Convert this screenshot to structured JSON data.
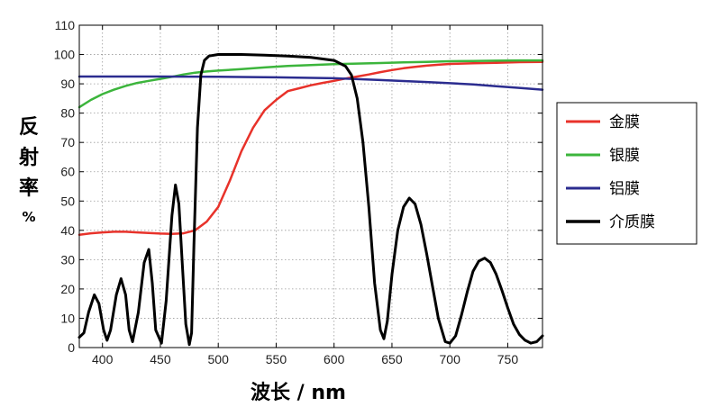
{
  "chart_data": {
    "type": "line",
    "title": "",
    "xlabel": "波长 / nm",
    "ylabel_lines": [
      "反",
      "射",
      "率",
      "%"
    ],
    "xlim": [
      380,
      780
    ],
    "ylim": [
      0,
      110
    ],
    "xticks": [
      400,
      450,
      500,
      550,
      600,
      650,
      700,
      750
    ],
    "yticks": [
      0,
      10,
      20,
      30,
      40,
      50,
      60,
      70,
      80,
      90,
      100,
      110
    ],
    "grid": true,
    "legend_position": "right",
    "series": [
      {
        "name": "金膜",
        "color": "#e8322a",
        "x": [
          380,
          390,
          400,
          410,
          420,
          430,
          440,
          450,
          460,
          470,
          480,
          490,
          500,
          510,
          520,
          530,
          540,
          550,
          560,
          570,
          580,
          590,
          600,
          610,
          620,
          630,
          640,
          650,
          660,
          670,
          680,
          690,
          700,
          720,
          740,
          760,
          780
        ],
        "y": [
          38.5,
          39.0,
          39.3,
          39.5,
          39.5,
          39.3,
          39.1,
          38.9,
          38.8,
          39.0,
          40.0,
          43.0,
          48.0,
          57.0,
          67.0,
          75.0,
          81.0,
          84.5,
          87.5,
          88.5,
          89.5,
          90.3,
          91.0,
          91.8,
          92.5,
          93.2,
          94.0,
          94.7,
          95.3,
          95.8,
          96.2,
          96.5,
          96.8,
          97.0,
          97.2,
          97.4,
          97.5
        ]
      },
      {
        "name": "银膜",
        "color": "#3cb53c",
        "x": [
          380,
          390,
          400,
          410,
          420,
          430,
          440,
          450,
          460,
          470,
          480,
          490,
          500,
          520,
          540,
          560,
          580,
          600,
          620,
          640,
          660,
          680,
          700,
          720,
          740,
          760,
          780
        ],
        "y": [
          82.0,
          84.5,
          86.5,
          88.0,
          89.3,
          90.3,
          91.0,
          91.7,
          92.4,
          93.2,
          93.8,
          94.2,
          94.5,
          95.0,
          95.6,
          96.1,
          96.4,
          96.7,
          96.9,
          97.1,
          97.3,
          97.5,
          97.7,
          97.8,
          97.9,
          98.0,
          98.0
        ]
      },
      {
        "name": "铝膜",
        "color": "#2b2c8f",
        "x": [
          380,
          400,
          450,
          500,
          550,
          600,
          640,
          680,
          700,
          720,
          740,
          760,
          780
        ],
        "y": [
          92.5,
          92.5,
          92.5,
          92.4,
          92.2,
          91.9,
          91.3,
          90.6,
          90.2,
          89.8,
          89.2,
          88.6,
          88.0
        ]
      },
      {
        "name": "介质膜",
        "color": "#000000",
        "x": [
          380,
          384,
          388,
          393,
          397,
          401,
          404,
          407,
          412,
          416,
          420,
          423,
          426,
          431,
          436,
          440,
          443,
          446,
          451,
          455,
          460,
          463,
          466,
          469,
          472,
          475,
          477,
          479,
          482,
          485,
          488,
          492,
          500,
          520,
          540,
          560,
          580,
          600,
          610,
          615,
          620,
          625,
          630,
          635,
          640,
          643,
          646,
          650,
          655,
          660,
          665,
          670,
          675,
          680,
          685,
          690,
          696,
          700,
          705,
          710,
          715,
          720,
          725,
          730,
          735,
          740,
          745,
          750,
          755,
          760,
          765,
          770,
          775,
          780
        ],
        "y": [
          3.5,
          5.0,
          12.0,
          18.0,
          15.0,
          6.0,
          2.5,
          6.0,
          18.0,
          23.5,
          18.0,
          6.0,
          2.0,
          12.0,
          29.0,
          33.5,
          22.0,
          6.0,
          1.5,
          16.0,
          45.0,
          55.5,
          49.0,
          28.0,
          8.0,
          1.0,
          5.0,
          35.0,
          75.0,
          93.0,
          98.0,
          99.5,
          100.0,
          100.0,
          99.8,
          99.5,
          99.0,
          98.0,
          96.0,
          93.0,
          85.0,
          70.0,
          48.0,
          22.0,
          6.0,
          3.0,
          9.0,
          25.0,
          40.0,
          48.0,
          51.0,
          49.0,
          42.0,
          32.0,
          21.0,
          10.0,
          2.0,
          1.5,
          4.0,
          11.0,
          19.0,
          26.0,
          29.5,
          30.5,
          29.0,
          25.0,
          19.5,
          13.5,
          8.0,
          4.5,
          2.5,
          1.5,
          2.0,
          4.0
        ]
      }
    ]
  }
}
